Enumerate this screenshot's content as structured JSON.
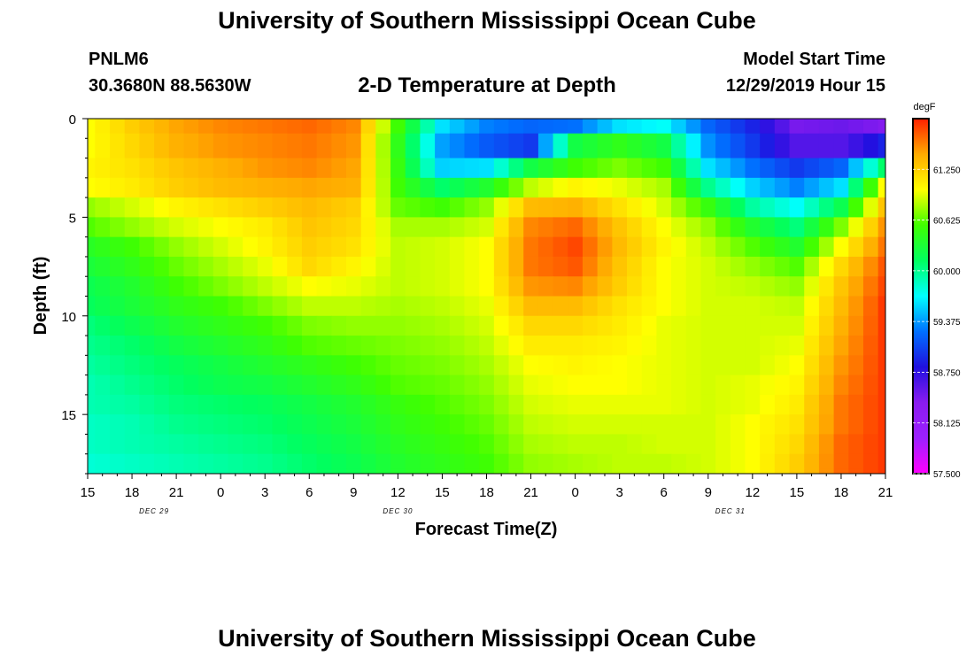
{
  "header": {
    "title": "University of Southern Mississippi Ocean Cube",
    "station": "PNLM6",
    "coordinates": "30.3680N 88.5630W",
    "plot_title": "2-D Temperature at Depth",
    "model_start_label": "Model Start Time",
    "model_start_value": "12/29/2019 Hour 15"
  },
  "footer": {
    "title": "University of Southern Mississippi Ocean Cube"
  },
  "chart_data": {
    "type": "heatmap",
    "title": "2-D Temperature at Depth",
    "xlabel": "Forecast Time(Z)",
    "ylabel": "Depth (ft)",
    "x_tick_labels": [
      "15",
      "18",
      "21",
      "0",
      "3",
      "6",
      "9",
      "12",
      "15",
      "18",
      "21",
      "0",
      "3",
      "6",
      "9",
      "12",
      "15",
      "18",
      "21"
    ],
    "x_date_labels": [
      {
        "label": "DEC 29",
        "tick_index": 1.5
      },
      {
        "label": "DEC 30",
        "tick_index": 7
      },
      {
        "label": "DEC 31",
        "tick_index": 14.5
      }
    ],
    "y_tick_labels": [
      "0",
      "5",
      "10",
      "15"
    ],
    "y_tick_values": [
      0,
      5,
      10,
      15
    ],
    "ylim": [
      0,
      18
    ],
    "y_inverted": true,
    "colorbar": {
      "unit": "degF",
      "min": 57.5,
      "max": 61.875,
      "tick_labels": [
        "61.250",
        "60.625",
        "60.000",
        "59.375",
        "58.750",
        "58.125",
        "57.500"
      ],
      "tick_values": [
        61.25,
        60.625,
        60.0,
        59.375,
        58.75,
        58.125,
        57.5
      ],
      "colormap": [
        "#ff00ff",
        "#9c20ff",
        "#8a1cf0",
        "#2010e0",
        "#0070ff",
        "#00ffff",
        "#00ff60",
        "#40ff00",
        "#ffff00",
        "#ffaa00",
        "#ff2000"
      ]
    },
    "depth_levels": [
      0,
      1.5,
      2.5,
      3.5,
      4.5,
      5.5,
      6.5,
      7.5,
      8.5,
      9.5,
      10.5,
      11.5,
      12.5,
      13.5,
      14.5,
      15.5,
      16.5,
      17.5,
      18
    ],
    "grid_note": "Rows are depth levels (ft), columns are forecast hours 15Z Dec 29 through 21Z Dec 31 every 3 h. Values in degF.",
    "values": [
      [
        61.0,
        61.25,
        61.45,
        61.55,
        61.6,
        61.65,
        61.55,
        60.55,
        59.6,
        59.3,
        59.2,
        59.25,
        59.6,
        59.7,
        59.2,
        58.9,
        58.45,
        58.5,
        58.4
      ],
      [
        61.0,
        61.2,
        61.4,
        61.5,
        61.55,
        61.6,
        61.5,
        60.45,
        59.4,
        59.15,
        59.0,
        60.25,
        60.45,
        60.25,
        59.35,
        59.0,
        58.6,
        58.6,
        58.9
      ],
      [
        61.05,
        61.15,
        61.3,
        61.4,
        61.5,
        61.55,
        61.45,
        60.5,
        59.55,
        59.6,
        60.25,
        60.55,
        60.7,
        60.55,
        59.6,
        59.25,
        59.0,
        59.2,
        60.1
      ],
      [
        61.0,
        61.1,
        61.25,
        61.35,
        61.4,
        61.45,
        61.4,
        60.55,
        60.1,
        60.35,
        60.85,
        61.05,
        60.95,
        60.8,
        60.0,
        59.55,
        59.3,
        59.6,
        61.0
      ],
      [
        60.75,
        60.9,
        61.05,
        61.15,
        61.25,
        61.35,
        61.25,
        60.65,
        60.55,
        60.75,
        61.35,
        61.4,
        61.15,
        60.9,
        60.5,
        59.95,
        59.7,
        60.2,
        61.3
      ],
      [
        60.6,
        60.75,
        60.9,
        61.0,
        61.1,
        61.3,
        61.2,
        60.8,
        60.8,
        60.9,
        61.55,
        61.65,
        61.3,
        61.0,
        60.75,
        60.35,
        60.05,
        60.7,
        61.5
      ],
      [
        60.4,
        60.55,
        60.75,
        60.9,
        61.05,
        61.25,
        61.15,
        60.85,
        60.9,
        61.0,
        61.6,
        61.75,
        61.35,
        61.05,
        60.85,
        60.6,
        60.35,
        61.0,
        61.6
      ],
      [
        60.3,
        60.45,
        60.65,
        60.8,
        60.95,
        61.2,
        61.05,
        60.85,
        60.9,
        61.0,
        61.6,
        61.7,
        61.3,
        61.0,
        60.9,
        60.75,
        60.6,
        61.2,
        61.7
      ],
      [
        60.2,
        60.35,
        60.55,
        60.7,
        60.85,
        61.0,
        60.95,
        60.85,
        60.9,
        61.0,
        61.5,
        61.55,
        61.25,
        61.0,
        60.9,
        60.85,
        60.75,
        61.3,
        61.75
      ],
      [
        60.15,
        60.3,
        60.45,
        60.55,
        60.7,
        60.85,
        60.85,
        60.8,
        60.85,
        60.95,
        61.35,
        61.35,
        61.15,
        61.0,
        60.9,
        60.9,
        60.85,
        61.35,
        61.8
      ],
      [
        60.05,
        60.2,
        60.35,
        60.45,
        60.55,
        60.7,
        60.75,
        60.75,
        60.8,
        60.9,
        61.2,
        61.2,
        61.1,
        60.95,
        60.9,
        60.9,
        60.9,
        61.4,
        61.8
      ],
      [
        60.0,
        60.1,
        60.25,
        60.35,
        60.45,
        60.6,
        60.65,
        60.7,
        60.75,
        60.85,
        61.1,
        61.1,
        61.05,
        60.95,
        60.9,
        60.9,
        60.95,
        61.45,
        61.8
      ],
      [
        59.95,
        60.05,
        60.15,
        60.25,
        60.35,
        60.45,
        60.55,
        60.65,
        60.7,
        60.8,
        61.0,
        61.05,
        61.0,
        60.95,
        60.9,
        60.9,
        61.0,
        61.5,
        61.8
      ],
      [
        59.9,
        60.0,
        60.1,
        60.2,
        60.25,
        60.35,
        60.45,
        60.6,
        60.65,
        60.75,
        60.95,
        61.0,
        61.0,
        60.95,
        60.9,
        60.95,
        61.05,
        61.55,
        61.8
      ],
      [
        59.9,
        59.95,
        60.05,
        60.1,
        60.15,
        60.25,
        60.35,
        60.5,
        60.6,
        60.7,
        60.9,
        60.95,
        60.95,
        60.95,
        60.9,
        60.95,
        61.1,
        61.6,
        61.8
      ],
      [
        59.85,
        59.9,
        60.0,
        60.05,
        60.1,
        60.2,
        60.3,
        60.45,
        60.55,
        60.65,
        60.85,
        60.9,
        60.9,
        60.9,
        60.9,
        61.0,
        61.15,
        61.6,
        61.8
      ],
      [
        59.85,
        59.9,
        59.95,
        60.0,
        60.05,
        60.15,
        60.25,
        60.4,
        60.5,
        60.6,
        60.8,
        60.85,
        60.85,
        60.9,
        60.9,
        61.0,
        61.2,
        61.65,
        61.8
      ],
      [
        59.8,
        59.85,
        59.9,
        59.95,
        60.0,
        60.1,
        60.2,
        60.35,
        60.45,
        60.55,
        60.75,
        60.8,
        60.85,
        60.85,
        60.9,
        61.0,
        61.25,
        61.65,
        61.8
      ],
      [
        59.8,
        59.85,
        59.9,
        59.95,
        60.0,
        60.1,
        60.2,
        60.35,
        60.45,
        60.55,
        60.75,
        60.8,
        60.85,
        60.85,
        60.9,
        61.0,
        61.25,
        61.65,
        61.8
      ]
    ]
  }
}
